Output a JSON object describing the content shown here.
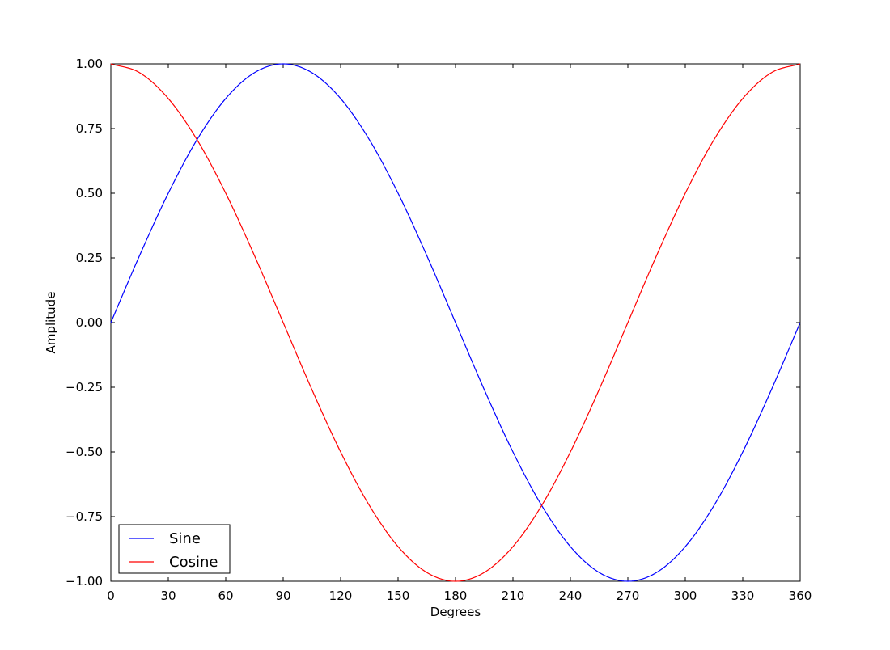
{
  "chart_data": {
    "type": "line",
    "title": "",
    "xlabel": "Degrees",
    "ylabel": "Amplitude",
    "xlim": [
      0,
      360
    ],
    "ylim": [
      -1.0,
      1.0
    ],
    "x_ticks": [
      0,
      30,
      60,
      90,
      120,
      150,
      180,
      210,
      240,
      270,
      300,
      330,
      360
    ],
    "x_tick_labels": [
      "0",
      "30",
      "60",
      "90",
      "120",
      "150",
      "180",
      "210",
      "240",
      "270",
      "300",
      "330",
      "360"
    ],
    "y_ticks": [
      1.0,
      0.75,
      0.5,
      0.25,
      0.0,
      -0.25,
      -0.5,
      -0.75,
      -1.0
    ],
    "y_tick_labels": [
      "1.00",
      "0.75",
      "0.50",
      "0.25",
      "0.00",
      "−0.25",
      "−0.50",
      "−0.75",
      "−1.00"
    ],
    "grid": false,
    "legend_position": "lower-left",
    "x": [
      0,
      15,
      30,
      45,
      60,
      75,
      90,
      105,
      120,
      135,
      150,
      165,
      180,
      195,
      210,
      225,
      240,
      255,
      270,
      285,
      300,
      315,
      330,
      345,
      360
    ],
    "series": [
      {
        "name": "Sine",
        "color": "#0000ff",
        "values": [
          0.0,
          0.259,
          0.5,
          0.707,
          0.866,
          0.966,
          1.0,
          0.966,
          0.866,
          0.707,
          0.5,
          0.259,
          0.0,
          -0.259,
          -0.5,
          -0.707,
          -0.866,
          -0.966,
          -1.0,
          -0.966,
          -0.866,
          -0.707,
          -0.5,
          -0.259,
          0.0
        ]
      },
      {
        "name": "Cosine",
        "color": "#ff0000",
        "values": [
          1.0,
          0.966,
          0.866,
          0.707,
          0.5,
          0.259,
          0.0,
          -0.259,
          -0.5,
          -0.707,
          -0.866,
          -0.966,
          -1.0,
          -0.966,
          -0.866,
          -0.707,
          -0.5,
          -0.259,
          0.0,
          0.259,
          0.5,
          0.707,
          0.866,
          0.966,
          1.0
        ]
      }
    ]
  }
}
